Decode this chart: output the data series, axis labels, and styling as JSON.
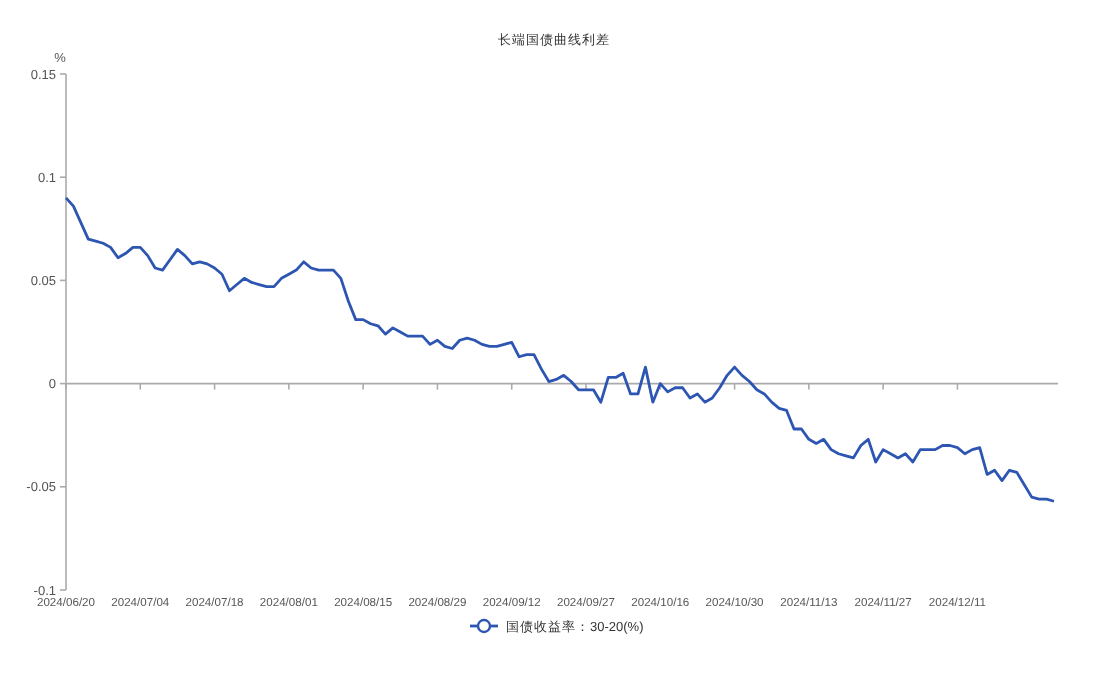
{
  "chart_data": {
    "type": "line",
    "title": "长端国债曲线利差",
    "ylabel": "%",
    "categories": [
      "2024/06/20",
      null,
      null,
      null,
      null,
      null,
      null,
      null,
      null,
      null,
      "2024/07/04",
      null,
      null,
      null,
      null,
      null,
      null,
      null,
      null,
      null,
      "2024/07/18",
      null,
      null,
      null,
      null,
      null,
      null,
      null,
      null,
      null,
      "2024/08/01",
      null,
      null,
      null,
      null,
      null,
      null,
      null,
      null,
      null,
      "2024/08/15",
      null,
      null,
      null,
      null,
      null,
      null,
      null,
      null,
      null,
      "2024/08/29",
      null,
      null,
      null,
      null,
      null,
      null,
      null,
      null,
      null,
      "2024/09/12",
      null,
      null,
      null,
      null,
      null,
      null,
      null,
      null,
      null,
      "2024/09/27",
      null,
      null,
      null,
      null,
      null,
      null,
      null,
      null,
      null,
      "2024/10/16",
      null,
      null,
      null,
      null,
      null,
      null,
      null,
      null,
      null,
      "2024/10/30",
      null,
      null,
      null,
      null,
      null,
      null,
      null,
      null,
      null,
      "2024/11/13",
      null,
      null,
      null,
      null,
      null,
      null,
      null,
      null,
      null,
      "2024/11/27",
      null,
      null,
      null,
      null,
      null,
      null,
      null,
      null,
      null,
      "2024/12/11",
      null,
      null,
      null,
      null,
      null,
      null,
      null,
      null,
      null,
      null,
      null,
      null,
      null
    ],
    "series": [
      {
        "name": "国债收益率：30-20(%)",
        "color": "#2d55b2",
        "values": [
          0.09,
          0.086,
          0.078,
          0.07,
          0.069,
          0.068,
          0.066,
          0.061,
          0.063,
          0.066,
          0.066,
          0.062,
          0.056,
          0.055,
          0.06,
          0.065,
          0.062,
          0.058,
          0.059,
          0.058,
          0.056,
          0.053,
          0.045,
          0.048,
          0.051,
          0.049,
          0.048,
          0.047,
          0.047,
          0.051,
          0.053,
          0.055,
          0.059,
          0.056,
          0.055,
          0.055,
          0.055,
          0.051,
          0.04,
          0.031,
          0.031,
          0.029,
          0.028,
          0.024,
          0.027,
          0.025,
          0.023,
          0.023,
          0.023,
          0.019,
          0.021,
          0.018,
          0.017,
          0.021,
          0.022,
          0.021,
          0.019,
          0.018,
          0.018,
          0.019,
          0.02,
          0.013,
          0.014,
          0.014,
          0.007,
          0.001,
          0.002,
          0.004,
          0.001,
          -0.003,
          -0.003,
          -0.003,
          -0.009,
          0.003,
          0.003,
          0.005,
          -0.005,
          -0.005,
          0.008,
          -0.009,
          0,
          -0.004,
          -0.002,
          -0.002,
          -0.007,
          -0.005,
          -0.009,
          -0.007,
          -0.002,
          0.004,
          0.008,
          0.004,
          0.001,
          -0.003,
          -0.005,
          -0.009,
          -0.012,
          -0.013,
          -0.022,
          -0.022,
          -0.027,
          -0.029,
          -0.027,
          -0.032,
          -0.034,
          -0.035,
          -0.036,
          -0.03,
          -0.027,
          -0.038,
          -0.032,
          -0.034,
          -0.036,
          -0.034,
          -0.038,
          -0.032,
          -0.032,
          -0.032,
          -0.03,
          -0.03,
          -0.031,
          -0.034,
          -0.032,
          -0.031,
          -0.044,
          -0.042,
          -0.047,
          -0.042,
          -0.043,
          -0.049,
          -0.055,
          -0.056,
          -0.056,
          -0.057
        ]
      }
    ],
    "ylim": [
      -0.1,
      0.15
    ],
    "yticks": [
      -0.1,
      -0.05,
      0,
      0.05,
      0.1,
      0.15
    ],
    "legend": "bottom"
  }
}
